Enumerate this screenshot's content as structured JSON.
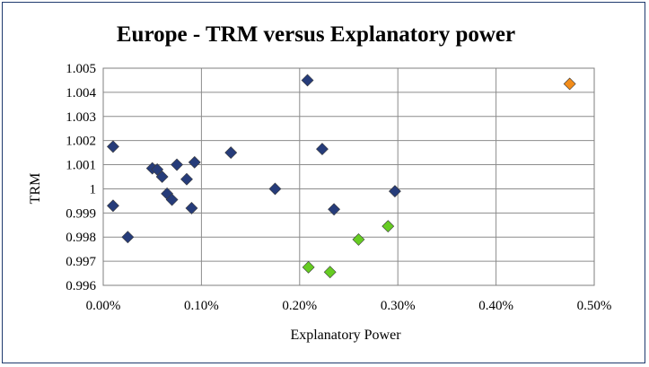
{
  "chart_data": {
    "type": "scatter",
    "title": "Europe - TRM versus Explanatory power",
    "xlabel": "Explanatory Power",
    "ylabel": "TRM",
    "xlim": [
      0,
      0.005
    ],
    "ylim": [
      0.996,
      1.005
    ],
    "x_ticks": [
      0,
      0.001,
      0.002,
      0.003,
      0.004,
      0.005
    ],
    "x_tick_labels": [
      "0.00%",
      "0.10%",
      "0.20%",
      "0.30%",
      "0.40%",
      "0.50%"
    ],
    "y_ticks": [
      0.996,
      0.997,
      0.998,
      0.999,
      1,
      1.001,
      1.002,
      1.003,
      1.004,
      1.005
    ],
    "y_tick_labels": [
      "0.996",
      "0.997",
      "0.998",
      "0.999",
      "1",
      "1.001",
      "1.002",
      "1.003",
      "1.004",
      "1.005"
    ],
    "grid": true,
    "legend": "none",
    "marker": "diamond",
    "series": [
      {
        "color": "#263c7a",
        "points": [
          {
            "x": 0.0001,
            "y": 1.00175
          },
          {
            "x": 0.0001,
            "y": 0.9993
          },
          {
            "x": 0.00025,
            "y": 0.998
          },
          {
            "x": 0.0005,
            "y": 1.00085
          },
          {
            "x": 0.00055,
            "y": 1.0008
          },
          {
            "x": 0.0006,
            "y": 1.0005
          },
          {
            "x": 0.00065,
            "y": 0.9998
          },
          {
            "x": 0.0007,
            "y": 0.99955
          },
          {
            "x": 0.00075,
            "y": 1.001
          },
          {
            "x": 0.00085,
            "y": 1.0004
          },
          {
            "x": 0.0009,
            "y": 0.9992
          },
          {
            "x": 0.00093,
            "y": 1.0011
          },
          {
            "x": 0.0013,
            "y": 1.0015
          },
          {
            "x": 0.00175,
            "y": 1.0
          },
          {
            "x": 0.00208,
            "y": 1.0045
          },
          {
            "x": 0.00223,
            "y": 1.00165
          },
          {
            "x": 0.00235,
            "y": 0.99915
          },
          {
            "x": 0.00297,
            "y": 0.9999
          }
        ]
      },
      {
        "color": "#66cc22",
        "points": [
          {
            "x": 0.00209,
            "y": 0.99675
          },
          {
            "x": 0.00231,
            "y": 0.99655
          },
          {
            "x": 0.0026,
            "y": 0.9979
          },
          {
            "x": 0.0029,
            "y": 0.99845
          }
        ]
      },
      {
        "color": "#f28c1a",
        "points": [
          {
            "x": 0.00475,
            "y": 1.00435
          }
        ]
      }
    ]
  }
}
